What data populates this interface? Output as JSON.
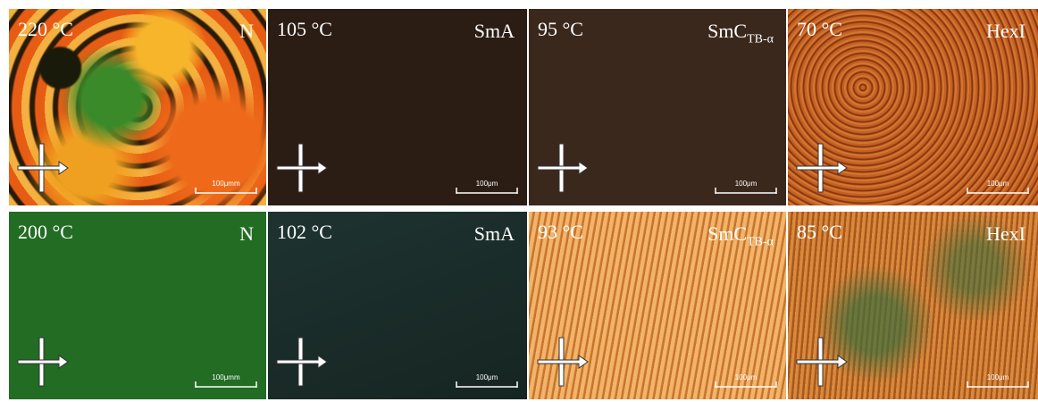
{
  "panels": [
    {
      "temperature": "220 °C",
      "phase": "N",
      "scale": "100μmm"
    },
    {
      "temperature": "105 °C",
      "phase": "SmA",
      "scale": "100μm"
    },
    {
      "temperature": "95 °C",
      "phase": "SmC",
      "phase_subscript": "TB-α",
      "scale": "100μm"
    },
    {
      "temperature": "70 °C",
      "phase": "HexI",
      "scale": "100μm"
    },
    {
      "temperature": "200 °C",
      "phase": "N",
      "scale": "100μmm"
    },
    {
      "temperature": "102 °C",
      "phase": "SmA",
      "scale": "100μm"
    },
    {
      "temperature": "93 °C",
      "phase": "SmC",
      "phase_subscript": "TB-α",
      "scale": "100μm"
    },
    {
      "temperature": "85 °C",
      "phase": "HexI",
      "scale": "100μm"
    }
  ]
}
